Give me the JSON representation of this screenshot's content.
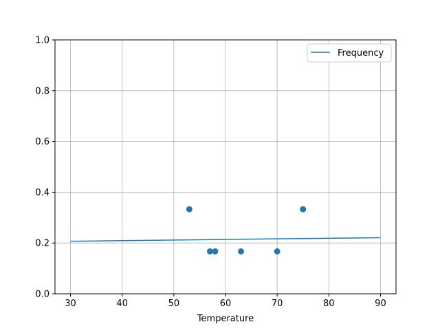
{
  "chart_data": {
    "type": "scatter",
    "title": "",
    "xlabel": "Temperature",
    "ylabel": "",
    "xlim": [
      27,
      93
    ],
    "ylim": [
      0,
      1
    ],
    "xticks": [
      30,
      40,
      50,
      60,
      70,
      80,
      90
    ],
    "xtick_labels": [
      "30",
      "40",
      "50",
      "60",
      "70",
      "80",
      "90"
    ],
    "yticks": [
      0,
      0.2,
      0.4,
      0.6,
      0.8,
      1.0
    ],
    "ytick_labels": [
      "0.0",
      "0.2",
      "0.4",
      "0.6",
      "0.8",
      "1.0"
    ],
    "grid": true,
    "legend_position": "top-right",
    "color": "#1f77b4",
    "scatter": {
      "x": [
        53,
        57,
        58,
        63,
        70,
        75
      ],
      "y": [
        0.333,
        0.167,
        0.167,
        0.167,
        0.167,
        0.333
      ]
    },
    "line": {
      "name": "Frequency",
      "x": [
        30,
        90
      ],
      "y": [
        0.207,
        0.221
      ]
    }
  }
}
